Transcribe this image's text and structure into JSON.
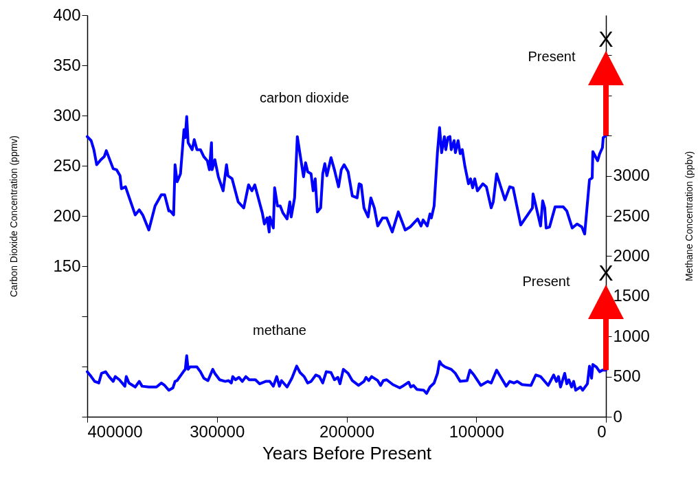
{
  "chart_data": {
    "type": "line",
    "xlabel": "Years Before Present",
    "ylabel": "Carbon Dioxide Concentration (ppmv)",
    "y2label": "Methane Concentration (ppbv)",
    "xlim": [
      400000,
      0
    ],
    "xticks": [
      400000,
      300000,
      200000,
      100000,
      0
    ],
    "ylim": [
      0,
      400
    ],
    "yticks": [
      {
        "value": 0,
        "label": null
      },
      {
        "value": 50,
        "label": null
      },
      {
        "value": 100,
        "label": null
      },
      150,
      200,
      250,
      300,
      350,
      400
    ],
    "y2lim": [
      0,
      5000
    ],
    "y2ticks": [
      0,
      500,
      1000,
      1500,
      2000,
      2500,
      3000,
      {
        "value": 3500,
        "label": null
      },
      {
        "value": 4000,
        "label": null
      },
      {
        "value": 4500,
        "label": null
      }
    ],
    "series": [
      {
        "name": "carbon dioxide",
        "color": "#0000ff",
        "axis": "y",
        "x": [
          400000,
          397000,
          394900,
          392700,
          389500,
          386900,
          385300,
          380000,
          377400,
          374700,
          373600,
          370500,
          363000,
          359900,
          357200,
          352500,
          347700,
          342900,
          340300,
          337100,
          336000,
          333400,
          332300,
          330700,
          328100,
          325400,
          324400,
          323300,
          322200,
          319100,
          317500,
          315400,
          312700,
          310100,
          307400,
          305800,
          304200,
          303700,
          301600,
          298900,
          295200,
          292600,
          291500,
          288300,
          283600,
          279300,
          275600,
          273000,
          270800,
          265000,
          263400,
          261300,
          259700,
          259200,
          256500,
          255500,
          253300,
          251200,
          249100,
          245900,
          243800,
          242700,
          240100,
          238000,
          233200,
          231600,
          230000,
          227400,
          225800,
          224200,
          222600,
          220000,
          218400,
          216800,
          215200,
          212000,
          209400,
          206200,
          204100,
          201900,
          198800,
          195600,
          191900,
          190300,
          188700,
          186600,
          183400,
          181300,
          178600,
          176000,
          172300,
          169100,
          164800,
          160100,
          154800,
          151000,
          145200,
          142600,
          141000,
          137800,
          135700,
          134600,
          132500,
          129900,
          128300,
          126700,
          124600,
          123500,
          121900,
          120300,
          119300,
          117100,
          116100,
          114000,
          112400,
          110800,
          108700,
          106000,
          104400,
          102800,
          101200,
          99100,
          94900,
          92200,
          88500,
          86900,
          84300,
          81600,
          77900,
          74200,
          71600,
          65700,
          56700,
          56200,
          50400,
          48800,
          47200,
          46100,
          43500,
          39200,
          32900,
          30200,
          26000,
          22300,
          18600,
          16400,
          12700,
          10600,
          10100,
          6400,
          4800,
          2700,
          2100,
          0
        ],
        "values": [
          279,
          275,
          266,
          251,
          256,
          259,
          265,
          247,
          246,
          240,
          227,
          229,
          201,
          206,
          201,
          186,
          210,
          221,
          221,
          205,
          205,
          201,
          251,
          234,
          242,
          286,
          278,
          299,
          273,
          266,
          276,
          266,
          266,
          259,
          255,
          246,
          273,
          246,
          256,
          239,
          225,
          251,
          240,
          237,
          214,
          208,
          231,
          225,
          231,
          203,
          192,
          198,
          184,
          199,
          188,
          228,
          210,
          210,
          203,
          197,
          214,
          199,
          218,
          279,
          239,
          253,
          244,
          242,
          225,
          237,
          204,
          208,
          242,
          252,
          240,
          258,
          246,
          229,
          246,
          251,
          244,
          220,
          218,
          232,
          231,
          208,
          199,
          218,
          208,
          190,
          198,
          198,
          184,
          204,
          186,
          189,
          197,
          190,
          196,
          190,
          202,
          198,
          210,
          264,
          288,
          263,
          279,
          266,
          278,
          279,
          266,
          275,
          263,
          275,
          262,
          266,
          249,
          232,
          237,
          228,
          237,
          225,
          232,
          229,
          208,
          214,
          242,
          231,
          216,
          229,
          228,
          191,
          208,
          222,
          190,
          215,
          208,
          188,
          189,
          209,
          209,
          205,
          188,
          192,
          189,
          182,
          236,
          238,
          264,
          255,
          262,
          268,
          278,
          280
        ]
      },
      {
        "name": "methane",
        "color": "#0000ff",
        "axis": "y2",
        "x": [
          400000,
          397000,
          394300,
          391100,
          389000,
          385800,
          383200,
          380000,
          378400,
          375200,
          371000,
          369900,
          367800,
          363000,
          359900,
          357700,
          352500,
          346600,
          342900,
          340300,
          337100,
          333900,
          332300,
          330700,
          325900,
          324400,
          323300,
          322200,
          320700,
          315400,
          312700,
          310100,
          306900,
          303200,
          301600,
          297900,
          293600,
          291000,
          288900,
          287800,
          285700,
          283000,
          280400,
          277700,
          275100,
          270300,
          267100,
          262400,
          259200,
          256500,
          253900,
          251800,
          250200,
          245900,
          242200,
          238500,
          235900,
          232700,
          230000,
          227400,
          223700,
          221000,
          218400,
          215700,
          212000,
          209400,
          206700,
          205100,
          202500,
          198800,
          195600,
          190800,
          186600,
          185000,
          182900,
          180700,
          176000,
          173800,
          171700,
          169100,
          164300,
          159000,
          155800,
          152100,
          150500,
          148400,
          145800,
          140500,
          138300,
          135700,
          132500,
          129900,
          128300,
          126700,
          124000,
          119300,
          116100,
          112400,
          107100,
          104900,
          101800,
          100200,
          96500,
          91200,
          88500,
          84300,
          80600,
          76900,
          74200,
          71000,
          68400,
          64700,
          57800,
          54100,
          50400,
          47700,
          44500,
          40300,
          38200,
          36600,
          35000,
          31800,
          30200,
          28600,
          26500,
          24900,
          23300,
          19600,
          18000,
          14300,
          12700,
          11100,
          10100,
          7400,
          4800,
          2700,
          0
        ],
        "values": [
          560,
          500,
          440,
          420,
          540,
          560,
          500,
          440,
          500,
          460,
          380,
          500,
          420,
          370,
          440,
          380,
          370,
          370,
          420,
          390,
          330,
          360,
          440,
          450,
          560,
          590,
          760,
          590,
          620,
          620,
          560,
          480,
          450,
          590,
          540,
          460,
          440,
          450,
          420,
          500,
          460,
          490,
          440,
          500,
          460,
          460,
          410,
          440,
          440,
          380,
          500,
          380,
          450,
          370,
          480,
          630,
          550,
          500,
          420,
          440,
          520,
          500,
          420,
          560,
          550,
          460,
          490,
          410,
          590,
          540,
          450,
          390,
          440,
          490,
          450,
          500,
          450,
          390,
          450,
          460,
          400,
          360,
          390,
          430,
          370,
          390,
          340,
          330,
          290,
          370,
          420,
          540,
          690,
          650,
          620,
          590,
          540,
          440,
          450,
          580,
          520,
          480,
          390,
          440,
          420,
          580,
          480,
          380,
          440,
          420,
          440,
          400,
          390,
          520,
          500,
          450,
          390,
          520,
          440,
          500,
          370,
          540,
          410,
          460,
          370,
          440,
          330,
          370,
          330,
          410,
          630,
          480,
          650,
          620,
          560,
          580,
          580
        ]
      }
    ],
    "annotations": [
      "Present",
      "X",
      "Present",
      "X"
    ]
  }
}
